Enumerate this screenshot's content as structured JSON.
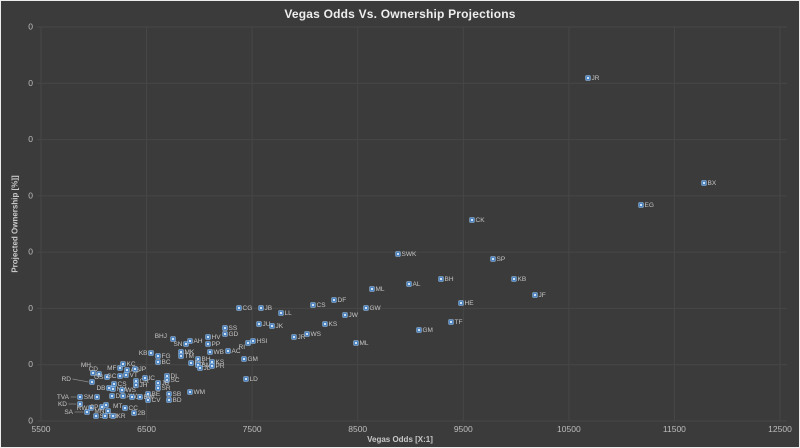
{
  "colors": {
    "background": "#3b3b3b",
    "border": "#ededed",
    "gridline": "#474747",
    "axis_text": "#bdbdbd",
    "title_text": "#eeeeee",
    "axis_title_text": "#c8c8c8",
    "marker_fill": "#4f86c6",
    "marker_edge": "#9fc5e8",
    "marker_core": "#cfe2f3",
    "point_label_text": "#c6c6c6",
    "leader_line": "#8f8f8f"
  },
  "chart_data": {
    "type": "scatter",
    "title": "Vegas Odds Vs. Ownership Projections",
    "xlabel": "Vegas Odds [X:1]",
    "ylabel": "Projected Ownership [%]]",
    "grid": true,
    "legend": "none",
    "x_axis": {
      "ticks": [
        5500,
        6500,
        7500,
        8500,
        9500,
        10500,
        11500,
        12500
      ],
      "range": [
        5500,
        12500
      ]
    },
    "y_axis": {
      "tick_labels": [
        "0",
        "0",
        "0",
        "0",
        "0",
        "0",
        "0",
        "0"
      ]
    },
    "point_format": "[label, x_px, y_px, anchor('s'=label right,'e'=label left), label_x_px?, label_y_px?, leader_line?]",
    "x_px_to_odds": "odds = 5500 + (x_px - 40) * 7000 / 739",
    "points": [
      [
        "JR",
        587,
        77,
        "s"
      ],
      [
        "BX",
        703,
        182,
        "s"
      ],
      [
        "EG",
        640,
        204,
        "s"
      ],
      [
        "CK",
        471,
        219,
        "s"
      ],
      [
        "SWK",
        397,
        253,
        "s"
      ],
      [
        "SP",
        492,
        258,
        "s"
      ],
      [
        "BH",
        440,
        278,
        "s"
      ],
      [
        "KB",
        513,
        278,
        "s"
      ],
      [
        "AL",
        408,
        283,
        "s"
      ],
      [
        "ML",
        371,
        288,
        "s"
      ],
      [
        "JF",
        534,
        294,
        "s"
      ],
      [
        "HE",
        460,
        302,
        "s"
      ],
      [
        "TF",
        450,
        321,
        "s"
      ],
      [
        "GM",
        418,
        329,
        "s"
      ],
      [
        "DF",
        333,
        299,
        "s"
      ],
      [
        "CS",
        312,
        304,
        "s"
      ],
      [
        "GW",
        365,
        307,
        "s"
      ],
      [
        "JW",
        344,
        314,
        "s"
      ],
      [
        "CG",
        238,
        307,
        "s"
      ],
      [
        "JB",
        260,
        307,
        "s"
      ],
      [
        "LL",
        280,
        312,
        "s"
      ],
      [
        "JU",
        258,
        323,
        "s"
      ],
      [
        "JK",
        271,
        325,
        "s"
      ],
      [
        "KS",
        324,
        323,
        "s"
      ],
      [
        "WS",
        306,
        333,
        "s"
      ],
      [
        "JR",
        293,
        336,
        "s"
      ],
      [
        "ML",
        355,
        342,
        "s"
      ],
      [
        "LD",
        245,
        378,
        "s"
      ],
      [
        "WM",
        189,
        391,
        "s"
      ],
      [
        "SS",
        224,
        327,
        "s"
      ],
      [
        "GD",
        224,
        333,
        "s"
      ],
      [
        "BHJ",
        172,
        338,
        "e",
        166,
        335
      ],
      [
        "SN",
        185,
        343,
        "e"
      ],
      [
        "AH",
        189,
        340,
        "s"
      ],
      [
        "HV",
        207,
        336,
        "s"
      ],
      [
        "PP",
        207,
        343,
        "s"
      ],
      [
        "WB",
        209,
        351,
        "s"
      ],
      [
        "AC",
        227,
        350,
        "s"
      ],
      [
        "RI",
        247,
        342,
        "e",
        244,
        346
      ],
      [
        "HSI",
        252,
        340,
        "s"
      ],
      [
        "GM",
        243,
        358,
        "s"
      ],
      [
        "MK",
        180,
        351,
        "s"
      ],
      [
        "TM",
        180,
        355,
        "s"
      ],
      [
        "KB",
        150,
        352,
        "e"
      ],
      [
        "FG",
        157,
        355,
        "s"
      ],
      [
        "BC",
        157,
        361,
        "s"
      ],
      [
        "BH",
        197,
        358,
        "s"
      ],
      [
        "RH",
        190,
        362,
        "s"
      ],
      [
        "BM",
        197,
        364,
        "s"
      ],
      [
        "KS",
        211,
        361,
        "s"
      ],
      [
        "PR",
        211,
        365,
        "s"
      ],
      [
        "JL",
        199,
        367,
        "s"
      ],
      [
        "MH",
        92,
        372,
        "e",
        90,
        364
      ],
      [
        "CD",
        98,
        373,
        "e",
        97,
        368
      ],
      [
        "RD",
        91,
        381,
        "e",
        70,
        378,
        1
      ],
      [
        "OS",
        106,
        376,
        "e"
      ],
      [
        "MF",
        119,
        367,
        "e"
      ],
      [
        "KC",
        122,
        363,
        "s"
      ],
      [
        "AG",
        126,
        369,
        "s"
      ],
      [
        "VT",
        125,
        374,
        "s"
      ],
      [
        "JP",
        134,
        368,
        "s"
      ],
      [
        "GC",
        119,
        375,
        "e"
      ],
      [
        "DB",
        108,
        387,
        "e"
      ],
      [
        "CS",
        113,
        383,
        "s"
      ],
      [
        "NM",
        112,
        388,
        "s"
      ],
      [
        "WS",
        121,
        389,
        "s"
      ],
      [
        "CR",
        135,
        380,
        "s"
      ],
      [
        "JH",
        135,
        384,
        "s"
      ],
      [
        "IC",
        144,
        377,
        "s"
      ],
      [
        "DL",
        166,
        375,
        "s"
      ],
      [
        "SC",
        166,
        379,
        "s"
      ],
      [
        "JB",
        157,
        382,
        "s"
      ],
      [
        "SR",
        157,
        387,
        "s"
      ],
      [
        "SB",
        168,
        393,
        "s"
      ],
      [
        "BD",
        168,
        399,
        "s"
      ],
      [
        "BE",
        147,
        393,
        "s"
      ],
      [
        "CV",
        147,
        399,
        "s"
      ],
      [
        "DH",
        111,
        395,
        "s"
      ],
      [
        "AW",
        122,
        395,
        "s"
      ],
      [
        "JB",
        131,
        396,
        "s"
      ],
      [
        "BW",
        139,
        396,
        "s"
      ],
      [
        "SM",
        96,
        396,
        "e"
      ],
      [
        "TVA",
        79,
        396,
        "e",
        68,
        396,
        1
      ],
      [
        "KD",
        79,
        403,
        "e",
        66,
        403,
        1
      ],
      [
        "SA",
        86,
        411,
        "e",
        72,
        411,
        1
      ],
      [
        "RW",
        90,
        407,
        "e"
      ],
      [
        "CP",
        101,
        406,
        "e"
      ],
      [
        "MN",
        107,
        410,
        "e"
      ],
      [
        "MT",
        105,
        404,
        "s",
        112,
        405
      ],
      [
        "CC",
        124,
        407,
        "s"
      ],
      [
        "2B",
        133,
        412,
        "s"
      ],
      [
        "SL",
        95,
        415,
        "s"
      ],
      [
        "RB",
        104,
        415,
        "s"
      ],
      [
        "KR",
        112,
        415,
        "s"
      ]
    ]
  }
}
